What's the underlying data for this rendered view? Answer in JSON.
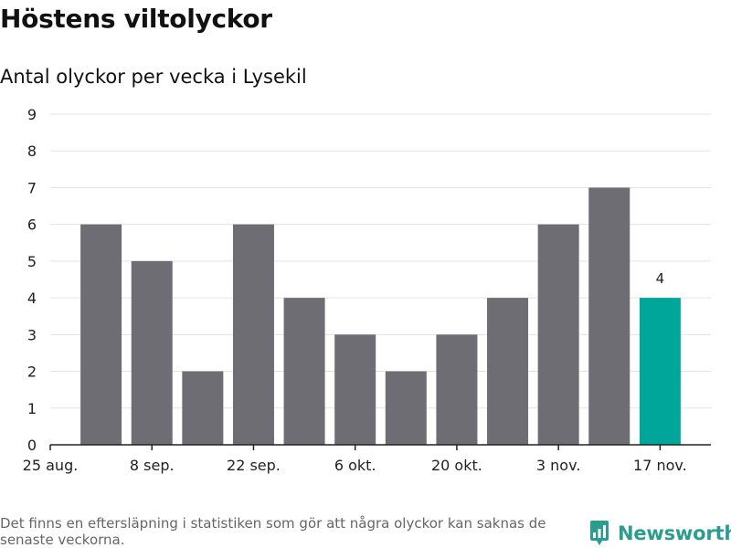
{
  "header": {
    "title": "Höstens viltolyckor",
    "subtitle": "Antal olyckor per vecka i Lysekil"
  },
  "footer": {
    "note": "Det finns en eftersläpning i statistiken som gör att några olyckor kan saknas de senaste veckorna.",
    "brand": "Newsworthy"
  },
  "colors": {
    "bar": "#6d6d73",
    "highlight": "#00a69a",
    "grid": "#e3e3e3",
    "axis": "#222222",
    "brand": "#2a9d8f"
  },
  "chart_data": {
    "type": "bar",
    "title": "Antal olyckor per vecka i Lysekil",
    "xlabel": "",
    "ylabel": "",
    "ylim": [
      0,
      9
    ],
    "yticks": [
      0,
      1,
      2,
      3,
      4,
      5,
      6,
      7,
      8,
      9
    ],
    "x_axis_range_weeks": [
      0,
      13
    ],
    "xtick_labels": [
      {
        "week": 0,
        "label": "25 aug."
      },
      {
        "week": 2,
        "label": "8 sep."
      },
      {
        "week": 4,
        "label": "22 sep."
      },
      {
        "week": 6,
        "label": "6 okt."
      },
      {
        "week": 8,
        "label": "20 okt."
      },
      {
        "week": 10,
        "label": "3 nov."
      },
      {
        "week": 12,
        "label": "17 nov."
      }
    ],
    "values": [
      6,
      5,
      2,
      6,
      4,
      3,
      2,
      3,
      4,
      6,
      7,
      4
    ],
    "highlight_index": 11,
    "highlight_label": "4",
    "grid": true
  }
}
